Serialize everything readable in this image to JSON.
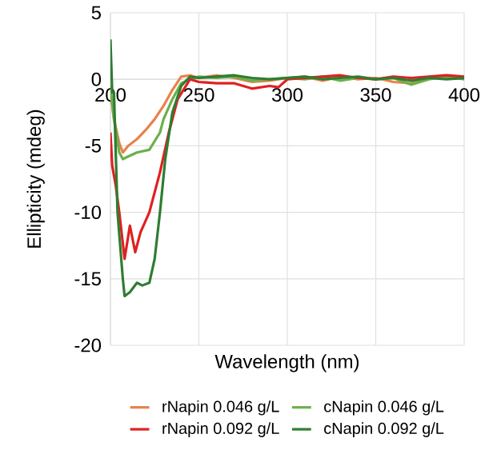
{
  "chart_data": {
    "type": "line",
    "xlabel": "Wavelength (nm)",
    "ylabel": "Ellipticity (mdeg)",
    "xlim": [
      200,
      400
    ],
    "ylim": [
      -20,
      5
    ],
    "xticks": [
      200,
      250,
      300,
      350,
      400
    ],
    "yticks": [
      -20,
      -15,
      -10,
      -5,
      0,
      5
    ],
    "grid": true,
    "legend": "bottom",
    "marker": "none",
    "line_style": "solid",
    "series": [
      {
        "name": "rNapin 0.046 g/L",
        "color": "#e8824a",
        "x": [
          200,
          202,
          205,
          207,
          210,
          215,
          220,
          225,
          230,
          235,
          240,
          245,
          250,
          260,
          270,
          280,
          290,
          300,
          310,
          320,
          330,
          340,
          350,
          360,
          370,
          380,
          390,
          400
        ],
        "values": [
          -1,
          -3,
          -4.8,
          -5.5,
          -5,
          -4.5,
          -3.8,
          -3,
          -2,
          -0.8,
          0.2,
          0.3,
          0.1,
          0.3,
          0.1,
          -0.2,
          -0.1,
          0.1,
          0.2,
          -0.1,
          0.2,
          0,
          0.1,
          -0.2,
          -0.3,
          0.1,
          0.2,
          0.1
        ]
      },
      {
        "name": "cNapin 0.046 g/L",
        "color": "#6ab04c",
        "x": [
          200,
          202,
          205,
          207,
          210,
          215,
          222,
          228,
          230,
          235,
          240,
          245,
          250,
          260,
          270,
          280,
          290,
          300,
          310,
          320,
          330,
          340,
          350,
          360,
          370,
          380,
          390,
          400
        ],
        "values": [
          -0.5,
          -3,
          -5.5,
          -6,
          -5.8,
          -5.5,
          -5.3,
          -4,
          -3,
          -1.5,
          -0.3,
          0,
          0.2,
          0.1,
          0.2,
          -0.1,
          0,
          0.1,
          0,
          0.2,
          -0.1,
          0.1,
          0,
          0.1,
          -0.4,
          0,
          0.2,
          0
        ]
      },
      {
        "name": "rNapin 0.092 g/L",
        "color": "#e02020",
        "x": [
          200,
          201,
          203,
          205,
          208,
          211,
          214,
          217,
          222,
          228,
          233,
          238,
          245,
          250,
          260,
          270,
          280,
          290,
          295,
          300,
          310,
          320,
          330,
          340,
          350,
          360,
          370,
          380,
          390,
          400
        ],
        "values": [
          -4,
          -6.5,
          -8,
          -10,
          -13.5,
          -11,
          -13,
          -11.5,
          -10,
          -7,
          -4,
          -1.5,
          0,
          -0.2,
          -0.3,
          -0.3,
          -0.7,
          -0.5,
          -0.6,
          0,
          0.1,
          0.2,
          0.3,
          0.1,
          0,
          0.2,
          0.1,
          0.2,
          0.3,
          0.2
        ]
      },
      {
        "name": "cNapin 0.092 g/L",
        "color": "#2e7d32",
        "x": [
          200,
          201,
          202,
          204,
          207,
          208,
          211,
          215,
          218,
          222,
          225,
          228,
          231,
          235,
          240,
          245,
          250,
          260,
          270,
          280,
          290,
          300,
          310,
          320,
          330,
          340,
          350,
          360,
          370,
          380,
          390,
          400
        ],
        "values": [
          3,
          -1,
          -1,
          -10,
          -15,
          -16.3,
          -16,
          -15.3,
          -15.5,
          -15.3,
          -13.5,
          -10,
          -6,
          -2.5,
          -0.5,
          0.2,
          0.1,
          0.2,
          0.3,
          0.1,
          0,
          0.1,
          0.2,
          0,
          0.1,
          0.2,
          0,
          0.1,
          -0.1,
          0.1,
          0,
          0.1
        ]
      }
    ]
  }
}
